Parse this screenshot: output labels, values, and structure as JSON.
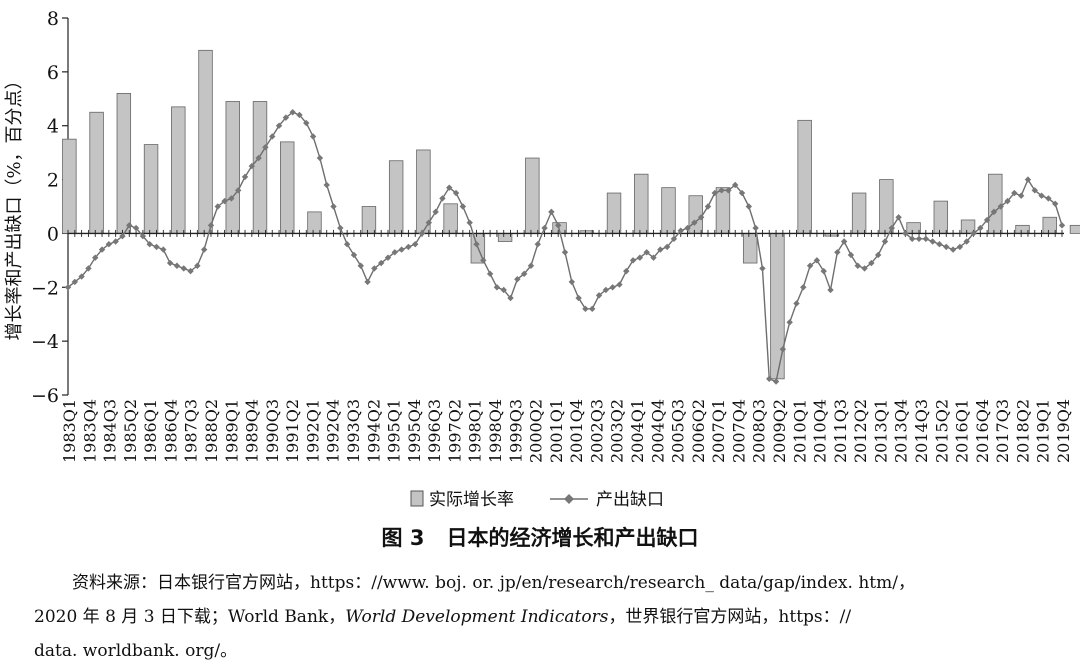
{
  "chart_data": {
    "type": "bar+line",
    "ylabel": "增长率和产出缺口（%，百分点）",
    "ylim": [
      -6,
      8
    ],
    "yticks": [
      -6,
      -4,
      -2,
      0,
      2,
      4,
      6,
      8
    ],
    "xtick_labels": [
      "1983Q1",
      "1983Q4",
      "1984Q3",
      "1985Q2",
      "1986Q1",
      "1986Q4",
      "1987Q3",
      "1988Q2",
      "1989Q1",
      "1989Q4",
      "1990Q3",
      "1991Q2",
      "1992Q1",
      "1992Q4",
      "1993Q3",
      "1994Q2",
      "1995Q1",
      "1995Q4",
      "1996Q3",
      "1997Q2",
      "1998Q1",
      "1998Q4",
      "1999Q3",
      "2000Q2",
      "2001Q1",
      "2001Q4",
      "2002Q3",
      "2003Q2",
      "2004Q1",
      "2004Q4",
      "2005Q3",
      "2006Q2",
      "2007Q1",
      "2007Q4",
      "2008Q3",
      "2009Q2",
      "2010Q1",
      "2010Q4",
      "2011Q3",
      "2012Q2",
      "2013Q1",
      "2013Q4",
      "2014Q3",
      "2015Q2",
      "2016Q1",
      "2016Q4",
      "2017Q3",
      "2018Q2",
      "2019Q1",
      "2019Q4"
    ],
    "bar_series": {
      "name": "实际增长率",
      "color": "#c4c4c4",
      "annual_values": [
        3.5,
        4.5,
        5.2,
        3.3,
        4.7,
        6.8,
        4.9,
        4.9,
        3.4,
        0.8,
        0.0,
        1.0,
        2.7,
        3.1,
        1.1,
        -1.1,
        -0.3,
        2.8,
        0.4,
        0.1,
        1.5,
        2.2,
        1.7,
        1.4,
        1.7,
        -1.1,
        -5.4,
        4.2,
        -0.1,
        1.5,
        2.0,
        0.4,
        1.2,
        0.5,
        2.2,
        0.3,
        0.6,
        0.3
      ]
    },
    "line_series": {
      "name": "产出缺口",
      "color": "#6e6e6e",
      "quarterly_values": [
        -2.0,
        -1.8,
        -1.6,
        -1.3,
        -0.9,
        -0.6,
        -0.4,
        -0.3,
        -0.1,
        0.3,
        0.2,
        -0.1,
        -0.4,
        -0.5,
        -0.6,
        -1.1,
        -1.2,
        -1.3,
        -1.4,
        -1.2,
        -0.6,
        0.3,
        1.0,
        1.2,
        1.3,
        1.6,
        2.1,
        2.5,
        2.8,
        3.2,
        3.6,
        4.0,
        4.3,
        4.5,
        4.4,
        4.1,
        3.6,
        2.8,
        1.8,
        1.0,
        0.2,
        -0.4,
        -0.8,
        -1.2,
        -1.8,
        -1.3,
        -1.1,
        -0.9,
        -0.7,
        -0.6,
        -0.5,
        -0.4,
        0.0,
        0.4,
        0.8,
        1.3,
        1.7,
        1.5,
        1.0,
        0.4,
        -0.4,
        -1.0,
        -1.5,
        -2.0,
        -2.1,
        -2.4,
        -1.7,
        -1.5,
        -1.2,
        -0.4,
        0.2,
        0.8,
        0.3,
        -0.7,
        -1.8,
        -2.4,
        -2.8,
        -2.8,
        -2.3,
        -2.1,
        -2.0,
        -1.9,
        -1.4,
        -1.0,
        -0.9,
        -0.7,
        -0.9,
        -0.6,
        -0.5,
        -0.2,
        0.1,
        0.2,
        0.4,
        0.6,
        1.0,
        1.5,
        1.6,
        1.6,
        1.8,
        1.5,
        1.0,
        0.2,
        -1.3,
        -5.4,
        -5.5,
        -4.3,
        -3.3,
        -2.6,
        -2.0,
        -1.2,
        -1.0,
        -1.4,
        -2.1,
        -0.7,
        -0.3,
        -0.8,
        -1.2,
        -1.3,
        -1.1,
        -0.8,
        -0.3,
        0.2,
        0.6,
        0.0,
        -0.2,
        -0.2,
        -0.2,
        -0.3,
        -0.4,
        -0.5,
        -0.6,
        -0.5,
        -0.3,
        0.0,
        0.2,
        0.5,
        0.8,
        1.0,
        1.2,
        1.5,
        1.4,
        2.0,
        1.6,
        1.4,
        1.3,
        1.1,
        0.3
      ]
    },
    "legend": [
      "实际增长率",
      "产出缺口"
    ],
    "legend_position": "bottom"
  },
  "caption": {
    "label": "图 3",
    "title": "日本的经济增长和产出缺口"
  },
  "source": {
    "line1": "资料来源：日本银行官方网站，https：//www. boj. or. jp/en/research/research_ data/gap/index. htm/，",
    "line2_pre": "2020 年 8 月 3 日下载；World Bank，",
    "line2_italic": "World Development Indicators",
    "line2_post": "，世界银行官方网站，https：//",
    "line3": "data. worldbank. org/。"
  }
}
